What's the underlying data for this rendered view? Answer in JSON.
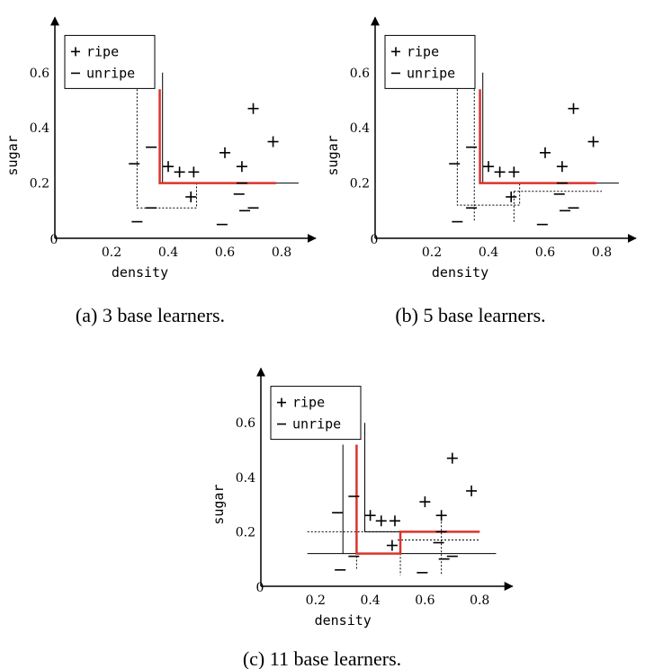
{
  "chart_data": [
    {
      "type": "scatter",
      "caption": "(a) 3 base learners.",
      "xlabel": "density",
      "ylabel": "sugar",
      "xlim": [
        0,
        0.92
      ],
      "ylim": [
        0,
        0.8
      ],
      "xticks": [
        0,
        0.2,
        0.4,
        0.6,
        0.8
      ],
      "yticks": [
        0.2,
        0.4,
        0.6
      ],
      "series": [
        {
          "name": "ripe",
          "marker": "+",
          "color": "#000000",
          "x": [
            0.4,
            0.44,
            0.49,
            0.48,
            0.6,
            0.66,
            0.7,
            0.77
          ],
          "values": [
            0.26,
            0.24,
            0.24,
            0.15,
            0.31,
            0.26,
            0.47,
            0.35
          ]
        },
        {
          "name": "unripe",
          "marker": "-",
          "color": "#000000",
          "x": [
            0.28,
            0.29,
            0.34,
            0.34,
            0.65,
            0.66,
            0.59,
            0.67,
            0.7
          ],
          "values": [
            0.27,
            0.06,
            0.33,
            0.11,
            0.16,
            0.2,
            0.05,
            0.1,
            0.11
          ]
        }
      ],
      "boundaries": [
        {
          "color": "#000000",
          "dotted": false,
          "x": [
            0.38,
            0.38,
            0.86
          ],
          "values": [
            0.6,
            0.2,
            0.2
          ]
        },
        {
          "color": "#000000",
          "dotted": true,
          "x": [
            0.29,
            0.29,
            0.5,
            0.5
          ],
          "values": [
            0.54,
            0.11,
            0.11,
            0.2
          ]
        },
        {
          "color": "#d9342b",
          "dotted": false,
          "x": [
            0.37,
            0.37,
            0.78
          ],
          "values": [
            0.54,
            0.2,
            0.2
          ]
        }
      ]
    },
    {
      "type": "scatter",
      "caption": "(b) 5 base learners.",
      "xlabel": "density",
      "ylabel": "sugar",
      "xlim": [
        0,
        0.92
      ],
      "ylim": [
        0,
        0.8
      ],
      "xticks": [
        0,
        0.2,
        0.4,
        0.6,
        0.8
      ],
      "yticks": [
        0.2,
        0.4,
        0.6
      ],
      "series": [
        {
          "name": "ripe",
          "marker": "+",
          "color": "#000000",
          "x": [
            0.4,
            0.44,
            0.49,
            0.48,
            0.6,
            0.66,
            0.7,
            0.77
          ],
          "values": [
            0.26,
            0.24,
            0.24,
            0.15,
            0.31,
            0.26,
            0.47,
            0.35
          ]
        },
        {
          "name": "unripe",
          "marker": "-",
          "color": "#000000",
          "x": [
            0.28,
            0.29,
            0.34,
            0.34,
            0.65,
            0.66,
            0.59,
            0.67,
            0.7
          ],
          "values": [
            0.27,
            0.06,
            0.33,
            0.11,
            0.16,
            0.2,
            0.05,
            0.1,
            0.11
          ]
        }
      ],
      "boundaries": [
        {
          "color": "#000000",
          "dotted": false,
          "x": [
            0.38,
            0.38,
            0.86
          ],
          "values": [
            0.6,
            0.2,
            0.2
          ]
        },
        {
          "color": "#000000",
          "dotted": true,
          "x": [
            0.29,
            0.29,
            0.51,
            0.51
          ],
          "values": [
            0.54,
            0.12,
            0.12,
            0.2
          ]
        },
        {
          "color": "#000000",
          "dotted": true,
          "x": [
            0.35,
            0.35
          ],
          "values": [
            0.54,
            0.06
          ]
        },
        {
          "color": "#000000",
          "dotted": true,
          "x": [
            0.49,
            0.49
          ],
          "values": [
            0.17,
            0.06
          ]
        },
        {
          "color": "#000000",
          "dotted": true,
          "x": [
            0.49,
            0.8
          ],
          "values": [
            0.17,
            0.17
          ]
        },
        {
          "color": "#d9342b",
          "dotted": false,
          "x": [
            0.37,
            0.37,
            0.78
          ],
          "values": [
            0.54,
            0.2,
            0.2
          ]
        }
      ]
    },
    {
      "type": "scatter",
      "caption": "(c) 11 base learners.",
      "xlabel": "density",
      "ylabel": "sugar",
      "xlim": [
        0,
        0.92
      ],
      "ylim": [
        0,
        0.8
      ],
      "xticks": [
        0,
        0.2,
        0.4,
        0.6,
        0.8
      ],
      "yticks": [
        0.2,
        0.4,
        0.6
      ],
      "series": [
        {
          "name": "ripe",
          "marker": "+",
          "color": "#000000",
          "x": [
            0.4,
            0.44,
            0.49,
            0.48,
            0.6,
            0.66,
            0.7,
            0.77
          ],
          "values": [
            0.26,
            0.24,
            0.24,
            0.15,
            0.31,
            0.26,
            0.47,
            0.35
          ]
        },
        {
          "name": "unripe",
          "marker": "-",
          "color": "#000000",
          "x": [
            0.28,
            0.29,
            0.34,
            0.34,
            0.65,
            0.66,
            0.59,
            0.67,
            0.7
          ],
          "values": [
            0.27,
            0.06,
            0.33,
            0.11,
            0.16,
            0.2,
            0.05,
            0.1,
            0.11
          ]
        }
      ],
      "boundaries": [
        {
          "color": "#000000",
          "dotted": false,
          "x": [
            0.38,
            0.38,
            0.8
          ],
          "values": [
            0.6,
            0.2,
            0.2
          ]
        },
        {
          "color": "#000000",
          "dotted": false,
          "x": [
            0.3,
            0.3
          ],
          "values": [
            0.52,
            0.12
          ]
        },
        {
          "color": "#000000",
          "dotted": false,
          "x": [
            0.17,
            0.86
          ],
          "values": [
            0.12,
            0.12
          ]
        },
        {
          "color": "#000000",
          "dotted": true,
          "x": [
            0.17,
            0.8
          ],
          "values": [
            0.2,
            0.2
          ]
        },
        {
          "color": "#000000",
          "dotted": true,
          "x": [
            0.35,
            0.35
          ],
          "values": [
            0.52,
            0.06
          ]
        },
        {
          "color": "#000000",
          "dotted": true,
          "x": [
            0.51,
            0.51
          ],
          "values": [
            0.2,
            0.04
          ]
        },
        {
          "color": "#000000",
          "dotted": true,
          "x": [
            0.5,
            0.8
          ],
          "values": [
            0.17,
            0.17
          ]
        },
        {
          "color": "#000000",
          "dotted": true,
          "x": [
            0.66,
            0.66
          ],
          "values": [
            0.25,
            0.04
          ]
        },
        {
          "color": "#d9342b",
          "dotted": false,
          "x": [
            0.35,
            0.35,
            0.51,
            0.51,
            0.8
          ],
          "values": [
            0.52,
            0.12,
            0.12,
            0.2,
            0.2
          ]
        }
      ]
    }
  ]
}
